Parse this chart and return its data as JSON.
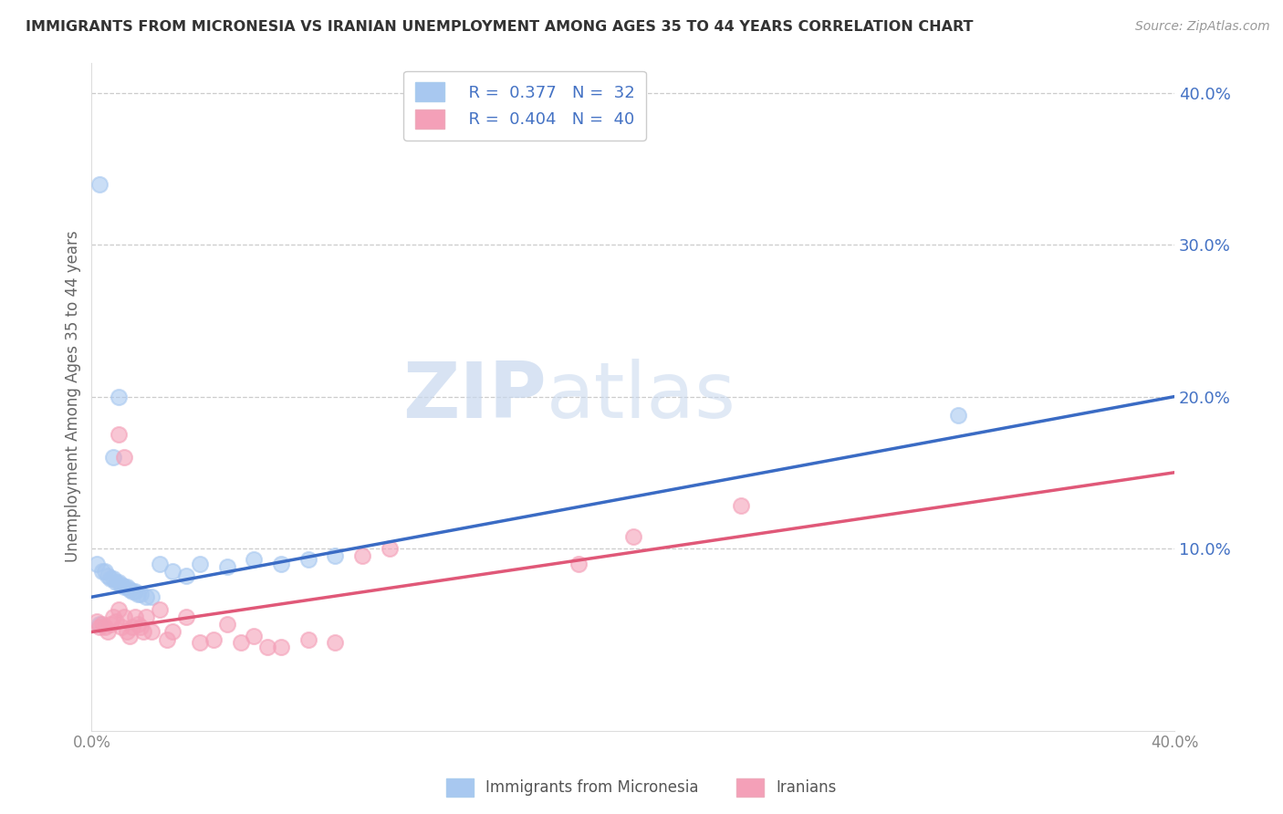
{
  "title": "IMMIGRANTS FROM MICRONESIA VS IRANIAN UNEMPLOYMENT AMONG AGES 35 TO 44 YEARS CORRELATION CHART",
  "source": "Source: ZipAtlas.com",
  "ylabel": "Unemployment Among Ages 35 to 44 years",
  "xlim": [
    0.0,
    0.4
  ],
  "ylim": [
    -0.02,
    0.42
  ],
  "ytick_vals": [
    0.1,
    0.2,
    0.3,
    0.4
  ],
  "ytick_labels": [
    "10.0%",
    "20.0%",
    "30.0%",
    "40.0%"
  ],
  "watermark_zip": "ZIP",
  "watermark_atlas": "atlas",
  "legend_blue_R": "0.377",
  "legend_blue_N": "32",
  "legend_pink_R": "0.404",
  "legend_pink_N": "40",
  "blue_fill": "#A8C8F0",
  "pink_fill": "#F4A0B8",
  "blue_line_color": "#3A6BC4",
  "pink_line_color": "#E05878",
  "blue_scatter": [
    [
      0.003,
      0.34
    ],
    [
      0.01,
      0.2
    ],
    [
      0.008,
      0.16
    ],
    [
      0.002,
      0.09
    ],
    [
      0.004,
      0.085
    ],
    [
      0.005,
      0.085
    ],
    [
      0.006,
      0.082
    ],
    [
      0.007,
      0.08
    ],
    [
      0.008,
      0.08
    ],
    [
      0.009,
      0.078
    ],
    [
      0.01,
      0.078
    ],
    [
      0.011,
      0.076
    ],
    [
      0.012,
      0.075
    ],
    [
      0.013,
      0.075
    ],
    [
      0.014,
      0.073
    ],
    [
      0.015,
      0.072
    ],
    [
      0.016,
      0.072
    ],
    [
      0.017,
      0.07
    ],
    [
      0.018,
      0.07
    ],
    [
      0.02,
      0.068
    ],
    [
      0.022,
      0.068
    ],
    [
      0.025,
      0.09
    ],
    [
      0.03,
      0.085
    ],
    [
      0.035,
      0.082
    ],
    [
      0.04,
      0.09
    ],
    [
      0.05,
      0.088
    ],
    [
      0.06,
      0.093
    ],
    [
      0.07,
      0.09
    ],
    [
      0.08,
      0.093
    ],
    [
      0.09,
      0.095
    ],
    [
      0.32,
      0.188
    ],
    [
      0.003,
      0.05
    ]
  ],
  "pink_scatter": [
    [
      0.002,
      0.052
    ],
    [
      0.003,
      0.048
    ],
    [
      0.004,
      0.05
    ],
    [
      0.005,
      0.048
    ],
    [
      0.006,
      0.045
    ],
    [
      0.007,
      0.05
    ],
    [
      0.008,
      0.055
    ],
    [
      0.009,
      0.052
    ],
    [
      0.01,
      0.06
    ],
    [
      0.011,
      0.048
    ],
    [
      0.012,
      0.055
    ],
    [
      0.013,
      0.045
    ],
    [
      0.014,
      0.042
    ],
    [
      0.015,
      0.048
    ],
    [
      0.016,
      0.055
    ],
    [
      0.017,
      0.05
    ],
    [
      0.018,
      0.048
    ],
    [
      0.019,
      0.045
    ],
    [
      0.02,
      0.055
    ],
    [
      0.022,
      0.045
    ],
    [
      0.025,
      0.06
    ],
    [
      0.028,
      0.04
    ],
    [
      0.03,
      0.045
    ],
    [
      0.035,
      0.055
    ],
    [
      0.04,
      0.038
    ],
    [
      0.045,
      0.04
    ],
    [
      0.05,
      0.05
    ],
    [
      0.055,
      0.038
    ],
    [
      0.06,
      0.042
    ],
    [
      0.065,
      0.035
    ],
    [
      0.07,
      0.035
    ],
    [
      0.08,
      0.04
    ],
    [
      0.09,
      0.038
    ],
    [
      0.01,
      0.175
    ],
    [
      0.012,
      0.16
    ],
    [
      0.11,
      0.1
    ],
    [
      0.18,
      0.09
    ],
    [
      0.24,
      0.128
    ],
    [
      0.1,
      0.095
    ],
    [
      0.2,
      0.108
    ]
  ],
  "background_color": "#FFFFFF",
  "grid_color": "#CCCCCC"
}
